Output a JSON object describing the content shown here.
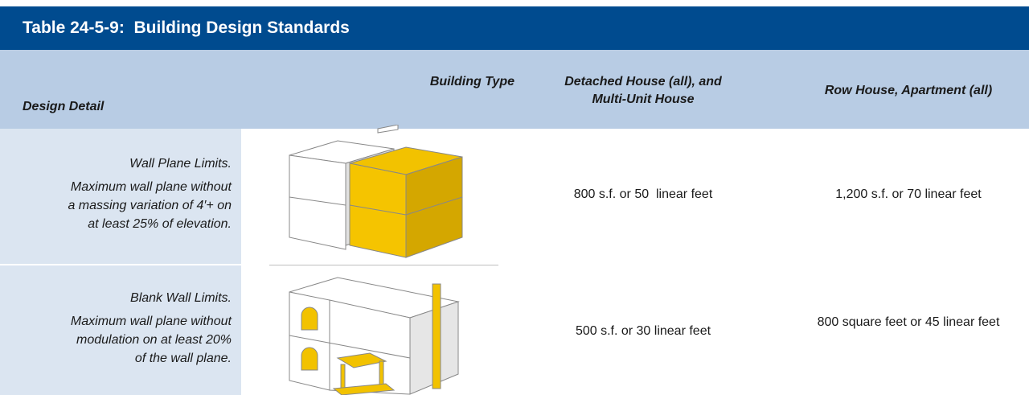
{
  "title": "Table 24-5-9:  Building Design Standards",
  "header": {
    "design_detail": "Design Detail",
    "building_type": "Building Type",
    "columns": [
      [
        "Detached House (all), and",
        "Multi-Unit House"
      ],
      [
        "Row House, Apartment (all)"
      ]
    ]
  },
  "rows": [
    {
      "detail_title": "Wall Plane Limits.",
      "detail_lines": [
        "Maximum wall plane without",
        "a massing variation of 4′+ on",
        "at least 25% of elevation."
      ],
      "values": [
        "800 s.f. or 50  linear feet",
        "1,200 s.f. or 70 linear feet"
      ]
    },
    {
      "detail_title": "Blank Wall Limits.",
      "detail_lines": [
        "Maximum wall plane without",
        "modulation on at least 20%",
        "of the wall plane."
      ],
      "values": [
        "500 s.f. or 30 linear feet",
        "800 square feet or 45 linear feet"
      ]
    }
  ]
}
